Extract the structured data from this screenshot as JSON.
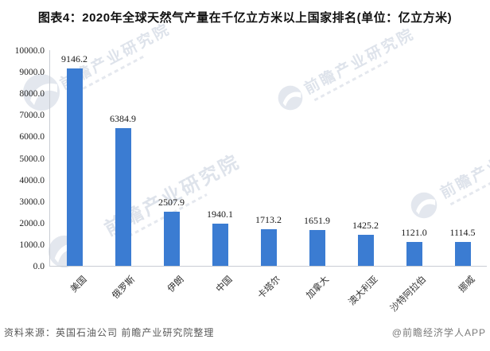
{
  "title": "图表4：2020年全球天然气产量在千亿立方米以上国家排名(单位：亿立方米)",
  "chart_data": {
    "type": "bar",
    "title": "2020年全球天然气产量在千亿立方米以上国家排名",
    "unit": "亿立方米",
    "categories": [
      "美国",
      "俄罗斯",
      "伊朗",
      "中国",
      "卡塔尔",
      "加拿大",
      "澳大利亚",
      "沙特阿拉伯",
      "挪威"
    ],
    "values": [
      9146.2,
      6384.9,
      2507.9,
      1940.1,
      1713.2,
      1651.9,
      1425.2,
      1121.0,
      1114.5
    ],
    "xlabel": "",
    "ylabel": "",
    "ylim": [
      0,
      10000
    ],
    "ytick_step": 1000,
    "ytick_decimals": 1,
    "value_label_decimals": 1,
    "grid": false,
    "legend": false,
    "value_labels": true,
    "bar_color": "#3b7cd2"
  },
  "footer": {
    "source": "资料来源：英国石油公司 前瞻产业研究院整理",
    "credit": "@前瞻经济学人APP"
  },
  "watermark": {
    "text": "前瞻产业研究院"
  },
  "colors": {
    "bar": "#3b7cd2",
    "axis_line": "#c9cdd4",
    "label_text": "#1a1a1a",
    "footer_text": "#595959",
    "credit_text": "#7a7a7a",
    "watermark": "#c9d1de",
    "background": "#ffffff"
  }
}
